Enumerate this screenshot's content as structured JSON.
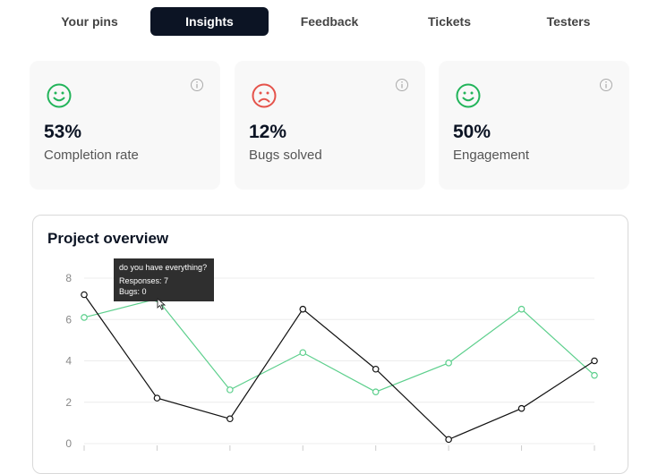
{
  "tabs": [
    {
      "label": "Your pins"
    },
    {
      "label": "Insights",
      "active": true
    },
    {
      "label": "Feedback"
    },
    {
      "label": "Tickets"
    },
    {
      "label": "Testers"
    }
  ],
  "cards": [
    {
      "value": "53%",
      "label": "Completion rate",
      "face_icon": "smile-icon",
      "face_color": "#22b45a"
    },
    {
      "value": "12%",
      "label": "Bugs solved",
      "face_icon": "frown-icon",
      "face_color": "#e5534b"
    },
    {
      "value": "50%",
      "label": "Engagement",
      "face_icon": "smile-icon",
      "face_color": "#22b45a"
    }
  ],
  "colors": {
    "accent_dark": "#0c1424",
    "series_black": "#111111",
    "series_green": "#5ccf8c"
  },
  "panel": {
    "title": "Project overview"
  },
  "tooltip": {
    "title": "do you have everything?",
    "responses": "Responses: 7",
    "bugs": "Bugs: 0"
  },
  "chart_data": {
    "type": "line",
    "x": [
      0,
      1,
      2,
      3,
      4,
      5,
      6,
      7
    ],
    "yticks": [
      "0",
      "2",
      "4",
      "6",
      "8"
    ],
    "ylim": [
      0,
      8
    ],
    "series": [
      {
        "values": [
          7.2,
          2.2,
          1.2,
          6.5,
          3.6,
          0.2,
          1.7,
          4.0
        ],
        "color": "#111111"
      },
      {
        "values": [
          6.1,
          7.0,
          2.6,
          4.4,
          2.5,
          3.9,
          6.5,
          3.3
        ],
        "color": "#5ccf8c"
      }
    ],
    "grid": true
  }
}
